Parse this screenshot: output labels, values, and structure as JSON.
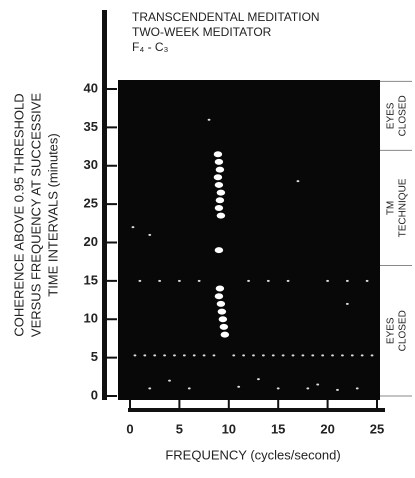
{
  "chart_data": {
    "type": "scatter",
    "title": [
      "TRANSCENDENTAL MEDITATION",
      "TWO-WEEK MEDITATOR"
    ],
    "subtitle": "F₄ - C₃",
    "y_label": [
      "COHERENCE ABOVE 0.95 THRESHOLD",
      "VERSUS FREQUENCY AT SUCCESSIVE",
      "TIME INTERVALS (minutes)"
    ],
    "x_label": "FREQUENCY (cycles/second)",
    "xlim": [
      0,
      25
    ],
    "xticks": [
      0,
      5,
      10,
      15,
      20,
      25
    ],
    "ylim": [
      0,
      41
    ],
    "yticks": [
      0,
      5,
      10,
      15,
      20,
      25,
      30,
      35,
      40
    ],
    "phases": [
      "EYES CLOSED",
      "TM TECHNIQUE",
      "EYES CLOSED"
    ],
    "phase_bounds": [
      41,
      32,
      17,
      0
    ],
    "series": [
      {
        "color": "#ffffff",
        "marker_size": 3,
        "x": [
          8.9,
          9.0,
          9.1,
          8.9,
          9.0,
          9.2,
          9.1,
          9.0,
          9.2,
          9.0,
          9.1,
          9.0,
          9.2,
          9.3,
          9.4,
          9.5,
          9.6
        ],
        "values": [
          31.5,
          30.5,
          29.5,
          28.5,
          27.5,
          26.5,
          25.5,
          24.5,
          23.5,
          19,
          14,
          13,
          12,
          11,
          10,
          9,
          8
        ]
      },
      {
        "color": "#dddddd",
        "marker_size": 1,
        "x": [
          0.5,
          1.5,
          2.5,
          3.5,
          4.5,
          5.5,
          6.5,
          7.5,
          8.5,
          10.5,
          11.5,
          12.5,
          13.5,
          14.5,
          15.5,
          16.5,
          17.5,
          18.5,
          19.5,
          20.5,
          21.5,
          22.5,
          23.5,
          24.5,
          1,
          3,
          5,
          7,
          12,
          14,
          16,
          20,
          22,
          24,
          2,
          6,
          11,
          15,
          18,
          21,
          23,
          4,
          13,
          19,
          0.3,
          2,
          8,
          17,
          22
        ],
        "values": [
          5.3,
          5.3,
          5.3,
          5.3,
          5.3,
          5.3,
          5.3,
          5.3,
          5.3,
          5.3,
          5.3,
          5.3,
          5.3,
          5.3,
          5.3,
          5.3,
          5.3,
          5.3,
          5.3,
          5.3,
          5.3,
          5.3,
          5.3,
          5.3,
          15,
          15,
          15,
          15,
          15,
          15,
          15,
          15,
          15,
          15,
          1,
          1,
          1.2,
          1,
          1,
          0.8,
          1,
          2,
          2.2,
          1.5,
          22,
          21,
          36,
          28,
          12
        ]
      }
    ]
  }
}
